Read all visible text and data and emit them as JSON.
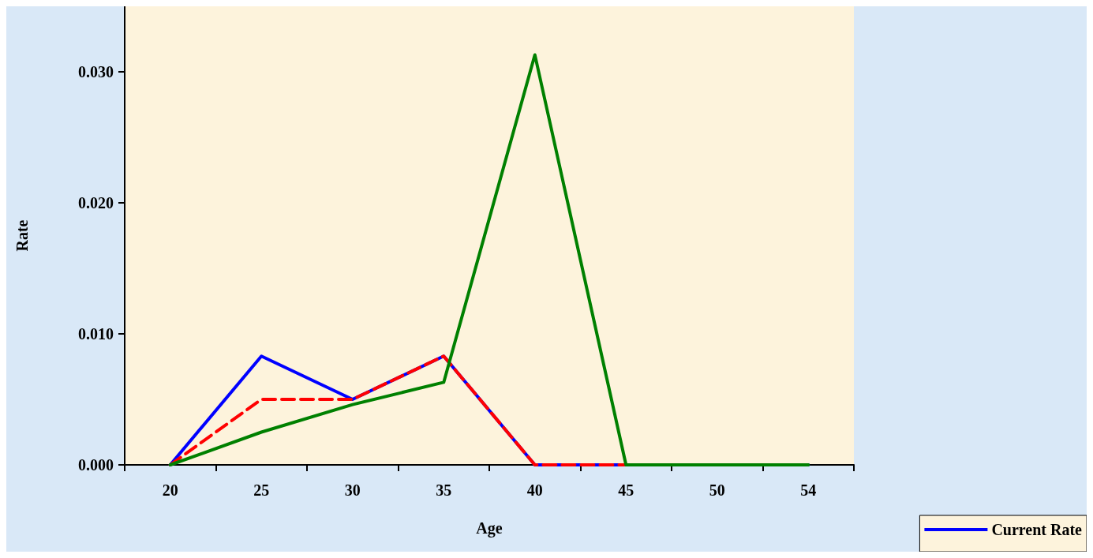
{
  "chart_data": {
    "type": "line",
    "xlabel": "Age",
    "ylabel": "Rate",
    "categories": [
      "20",
      "25",
      "30",
      "35",
      "40",
      "45",
      "50",
      "54"
    ],
    "series": [
      {
        "name": "Current Rate",
        "color": "#0000ff",
        "line_style": "solid",
        "values": [
          0,
          0.0083,
          0.005,
          0.0083,
          0,
          0,
          0,
          0
        ]
      },
      {
        "color": "#ff0000",
        "line_style": "dashed",
        "values": [
          0,
          0.005,
          0.005,
          0.0083,
          0,
          0,
          0,
          0
        ]
      },
      {
        "color": "#008000",
        "line_style": "solid",
        "values": [
          0,
          0.0025,
          0.0046,
          0.0063,
          0.0313,
          0,
          0,
          0
        ]
      }
    ],
    "ylim": [
      0,
      0.035
    ],
    "yticks": [
      {
        "value": 0,
        "label": "0.000"
      },
      {
        "value": 0.01,
        "label": "0.010"
      },
      {
        "value": 0.02,
        "label": "0.020"
      },
      {
        "value": 0.03,
        "label": "0.030"
      }
    ],
    "grid": false,
    "legend": "bottom right",
    "marker": "none"
  }
}
